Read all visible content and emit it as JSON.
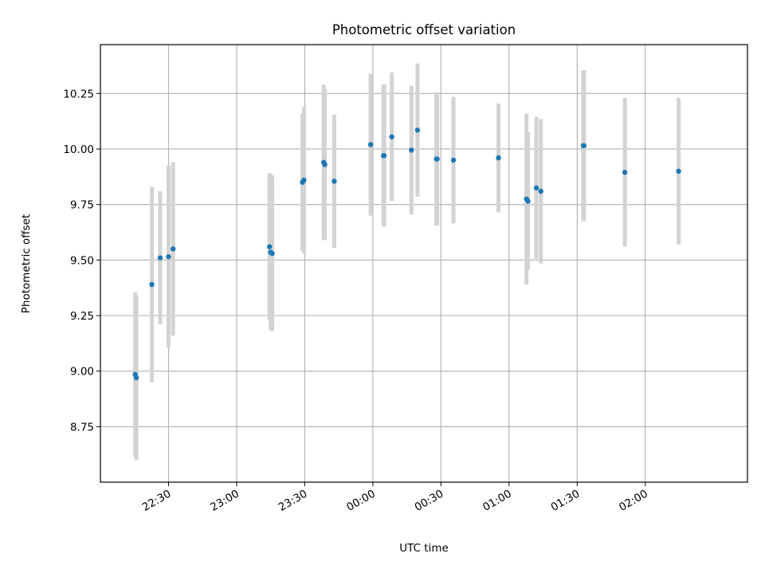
{
  "chart_data": {
    "type": "scatter",
    "title": "Photometric offset variation",
    "xlabel": "UTC time",
    "ylabel": "Photometric offset",
    "grid": true,
    "xlim": [
      "22:00",
      "02:45"
    ],
    "ylim": [
      8.5,
      10.47
    ],
    "x_ticks": [
      "22:30",
      "23:00",
      "23:30",
      "00:00",
      "00:30",
      "01:00",
      "01:30",
      "02:00"
    ],
    "y_ticks": [
      "8.75",
      "9.00",
      "9.25",
      "9.50",
      "9.75",
      "10.00",
      "10.25"
    ],
    "colors": {
      "points": "#1f77b4",
      "errorbars": "#d3d3d3",
      "grid": "#b0b0b0"
    },
    "points": [
      {
        "x": "22:15:20",
        "y": 8.985,
        "yerr": 0.37
      },
      {
        "x": "22:15:50",
        "y": 8.97,
        "yerr": 0.37
      },
      {
        "x": "22:22:40",
        "y": 9.39,
        "yerr": 0.44
      },
      {
        "x": "22:26:20",
        "y": 9.51,
        "yerr": 0.3
      },
      {
        "x": "22:30:00",
        "y": 9.515,
        "yerr": 0.41
      },
      {
        "x": "22:32:00",
        "y": 9.55,
        "yerr": 0.39
      },
      {
        "x": "23:14:30",
        "y": 9.56,
        "yerr": 0.33
      },
      {
        "x": "23:15:00",
        "y": 9.535,
        "yerr": 0.35
      },
      {
        "x": "23:15:40",
        "y": 9.53,
        "yerr": 0.35
      },
      {
        "x": "23:29:00",
        "y": 9.85,
        "yerr": 0.31
      },
      {
        "x": "23:29:40",
        "y": 9.86,
        "yerr": 0.33
      },
      {
        "x": "23:38:20",
        "y": 9.94,
        "yerr": 0.35
      },
      {
        "x": "23:38:50",
        "y": 9.93,
        "yerr": 0.34
      },
      {
        "x": "23:43:00",
        "y": 9.855,
        "yerr": 0.3
      },
      {
        "x": "23:59:00",
        "y": 10.02,
        "yerr": 0.32
      },
      {
        "x": "00:04:40",
        "y": 9.97,
        "yerr": 0.32
      },
      {
        "x": "00:05:00",
        "y": 9.97,
        "yerr": 0.32
      },
      {
        "x": "00:08:20",
        "y": 10.055,
        "yerr": 0.29
      },
      {
        "x": "00:17:00",
        "y": 9.995,
        "yerr": 0.29
      },
      {
        "x": "00:19:40",
        "y": 10.085,
        "yerr": 0.3
      },
      {
        "x": "00:28:00",
        "y": 9.955,
        "yerr": 0.3
      },
      {
        "x": "00:28:20",
        "y": 9.955,
        "yerr": 0.3
      },
      {
        "x": "00:35:30",
        "y": 9.95,
        "yerr": 0.285
      },
      {
        "x": "00:55:20",
        "y": 9.96,
        "yerr": 0.245
      },
      {
        "x": "01:07:40",
        "y": 9.775,
        "yerr": 0.385
      },
      {
        "x": "01:08:20",
        "y": 9.765,
        "yerr": 0.31
      },
      {
        "x": "01:12:00",
        "y": 9.825,
        "yerr": 0.32
      },
      {
        "x": "01:14:00",
        "y": 9.81,
        "yerr": 0.325
      },
      {
        "x": "01:32:40",
        "y": 10.015,
        "yerr": 0.34
      },
      {
        "x": "01:33:00",
        "y": 10.015,
        "yerr": 0.34
      },
      {
        "x": "01:51:00",
        "y": 9.895,
        "yerr": 0.335
      },
      {
        "x": "02:14:40",
        "y": 9.9,
        "yerr": 0.33
      }
    ]
  }
}
